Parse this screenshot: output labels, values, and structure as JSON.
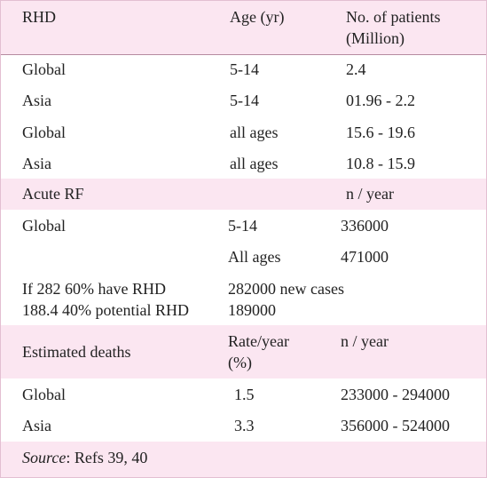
{
  "table": {
    "header": [
      "RHD",
      "Age (yr)",
      "No. of patients (Million)"
    ],
    "rhd_rows": [
      [
        "Global",
        "5-14",
        "2.4"
      ],
      [
        "Asia",
        "5-14",
        "01.96 - 2.2"
      ],
      [
        "Global",
        "all ages",
        "15.6 - 19.6"
      ],
      [
        "Asia",
        "all ages",
        "10.8 - 15.9"
      ]
    ],
    "acute_header": [
      "Acute RF",
      "n / year"
    ],
    "acute_rows": [
      [
        "Global",
        "5-14",
        "336000"
      ],
      [
        "All ages",
        "471000"
      ]
    ],
    "acute_notes": [
      [
        "If 282 60% have RHD",
        "282000 new cases"
      ],
      [
        "188.4 40% potential RHD",
        "189000"
      ]
    ],
    "deaths_header": [
      "Estimated deaths",
      "Rate/year (%)",
      "n / year"
    ],
    "deaths_rows": [
      [
        "Global",
        "1.5",
        "233000 - 294000"
      ],
      [
        "Asia",
        "3.3",
        "356000 - 524000"
      ]
    ],
    "source": {
      "label": "Source",
      "text": ": Refs 39, 40"
    }
  }
}
